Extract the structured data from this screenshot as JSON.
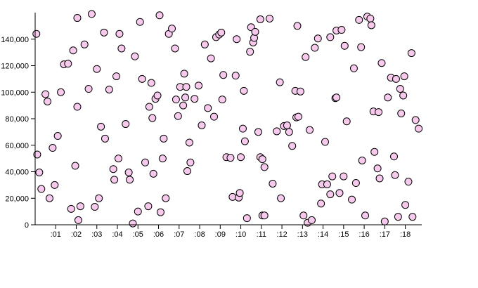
{
  "chart_data": {
    "type": "scatter",
    "title": "",
    "xlabel": "",
    "ylabel": "",
    "grid": false,
    "legend": "none",
    "x_tick_labels": [
      ":01",
      ":02",
      ":03",
      ":04",
      ":05",
      ":06",
      ":07",
      ":08",
      ":09",
      ":10",
      ":11",
      ":12",
      ":13",
      ":14",
      ":15",
      ":16",
      ":17",
      ":18"
    ],
    "y_tick_labels": [
      "0",
      "20,000",
      "40,000",
      "60,000",
      "80,000",
      "100,000",
      "120,000",
      "140,000"
    ],
    "xlim_seconds": [
      0,
      18.8
    ],
    "ylim": [
      0,
      160000
    ],
    "point_fill": "#f7c9ec",
    "point_stroke": "#000000",
    "series": [
      {
        "points": [
          [
            0.06,
            144000
          ],
          [
            0.1,
            53000
          ],
          [
            0.2,
            39500
          ],
          [
            0.3,
            27000
          ],
          [
            0.5,
            98500
          ],
          [
            0.6,
            93000
          ],
          [
            0.7,
            20000
          ],
          [
            0.85,
            58000
          ],
          [
            0.95,
            30000
          ],
          [
            1.1,
            67000
          ],
          [
            1.25,
            100000
          ],
          [
            1.4,
            121000
          ],
          [
            1.6,
            121500
          ],
          [
            1.75,
            12000
          ],
          [
            1.85,
            131500
          ],
          [
            1.95,
            44500
          ],
          [
            2.05,
            89000
          ],
          [
            2.1,
            3500
          ],
          [
            2.05,
            156000
          ],
          [
            2.2,
            14000
          ],
          [
            2.4,
            136000
          ],
          [
            2.6,
            102500
          ],
          [
            2.75,
            159000
          ],
          [
            2.9,
            13500
          ],
          [
            3.0,
            117500
          ],
          [
            3.1,
            20000
          ],
          [
            3.2,
            74000
          ],
          [
            3.35,
            145000
          ],
          [
            3.4,
            65000
          ],
          [
            3.6,
            102000
          ],
          [
            3.8,
            42000
          ],
          [
            3.85,
            34000
          ],
          [
            3.95,
            112000
          ],
          [
            4.05,
            50000
          ],
          [
            4.1,
            144000
          ],
          [
            4.2,
            133000
          ],
          [
            4.4,
            76000
          ],
          [
            4.55,
            39500
          ],
          [
            4.6,
            34000
          ],
          [
            4.75,
            1000
          ],
          [
            4.85,
            127000
          ],
          [
            5.0,
            10000
          ],
          [
            5.1,
            153000
          ],
          [
            5.2,
            110000
          ],
          [
            5.35,
            47000
          ],
          [
            5.5,
            14000
          ],
          [
            5.55,
            89000
          ],
          [
            5.65,
            107000
          ],
          [
            5.7,
            80500
          ],
          [
            5.75,
            38500
          ],
          [
            5.85,
            95000
          ],
          [
            5.95,
            97500
          ],
          [
            6.1,
            9500
          ],
          [
            6.05,
            158000
          ],
          [
            6.2,
            50000
          ],
          [
            6.25,
            65000
          ],
          [
            6.35,
            20000
          ],
          [
            6.5,
            144000
          ],
          [
            6.65,
            148000
          ],
          [
            6.8,
            133000
          ],
          [
            6.85,
            94500
          ],
          [
            6.95,
            82000
          ],
          [
            7.05,
            104000
          ],
          [
            7.2,
            90000
          ],
          [
            7.25,
            114000
          ],
          [
            7.3,
            96000
          ],
          [
            7.35,
            104000
          ],
          [
            7.4,
            40500
          ],
          [
            7.5,
            62000
          ],
          [
            7.55,
            47000
          ],
          [
            7.75,
            95000
          ],
          [
            7.95,
            105000
          ],
          [
            8.1,
            75000
          ],
          [
            8.25,
            136000
          ],
          [
            8.4,
            88000
          ],
          [
            8.55,
            125500
          ],
          [
            8.7,
            81500
          ],
          [
            8.8,
            141500
          ],
          [
            8.95,
            143500
          ],
          [
            9.05,
            145000
          ],
          [
            9.1,
            94500
          ],
          [
            9.15,
            113000
          ],
          [
            9.3,
            51000
          ],
          [
            9.5,
            50500
          ],
          [
            9.6,
            21000
          ],
          [
            9.75,
            112500
          ],
          [
            9.8,
            140000
          ],
          [
            9.9,
            20500
          ],
          [
            9.95,
            24000
          ],
          [
            10.0,
            51000
          ],
          [
            10.1,
            72500
          ],
          [
            10.15,
            101000
          ],
          [
            10.2,
            63000
          ],
          [
            10.3,
            5000
          ],
          [
            10.45,
            130500
          ],
          [
            10.5,
            149000
          ],
          [
            10.6,
            137500
          ],
          [
            10.65,
            141000
          ],
          [
            10.7,
            145500
          ],
          [
            10.85,
            70000
          ],
          [
            10.95,
            155000
          ],
          [
            10.95,
            51000
          ],
          [
            11.05,
            7000
          ],
          [
            11.05,
            49500
          ],
          [
            11.15,
            7000
          ],
          [
            11.15,
            43500
          ],
          [
            11.4,
            155500
          ],
          [
            11.55,
            31000
          ],
          [
            11.75,
            70500
          ],
          [
            11.9,
            107500
          ],
          [
            11.95,
            20000
          ],
          [
            12.1,
            74500
          ],
          [
            12.25,
            75000
          ],
          [
            12.35,
            70000
          ],
          [
            12.5,
            59500
          ],
          [
            12.65,
            101000
          ],
          [
            12.7,
            81000
          ],
          [
            12.75,
            150000
          ],
          [
            12.8,
            81500
          ],
          [
            12.9,
            100500
          ],
          [
            13.05,
            7000
          ],
          [
            13.15,
            126500
          ],
          [
            13.25,
            1500
          ],
          [
            13.35,
            71500
          ],
          [
            13.45,
            3500
          ],
          [
            13.6,
            133500
          ],
          [
            13.75,
            140500
          ],
          [
            13.9,
            16000
          ],
          [
            13.95,
            30500
          ],
          [
            14.1,
            62500
          ],
          [
            14.2,
            30500
          ],
          [
            14.35,
            23000
          ],
          [
            14.35,
            141500
          ],
          [
            14.45,
            36500
          ],
          [
            14.6,
            95500
          ],
          [
            14.65,
            96000
          ],
          [
            14.65,
            146500
          ],
          [
            14.8,
            24000
          ],
          [
            14.9,
            147000
          ],
          [
            15.0,
            36500
          ],
          [
            15.05,
            135000
          ],
          [
            15.15,
            78000
          ],
          [
            15.4,
            19000
          ],
          [
            15.5,
            118000
          ],
          [
            15.6,
            31500
          ],
          [
            15.75,
            154500
          ],
          [
            15.85,
            134000
          ],
          [
            15.9,
            48500
          ],
          [
            16.05,
            7000
          ],
          [
            16.15,
            157000
          ],
          [
            16.3,
            155500
          ],
          [
            16.35,
            150500
          ],
          [
            16.45,
            85500
          ],
          [
            16.5,
            55000
          ],
          [
            16.65,
            42500
          ],
          [
            16.7,
            85000
          ],
          [
            16.75,
            35000
          ],
          [
            16.85,
            122000
          ],
          [
            17.0,
            2500
          ],
          [
            17.15,
            96000
          ],
          [
            17.3,
            111000
          ],
          [
            17.45,
            51500
          ],
          [
            17.5,
            37500
          ],
          [
            17.55,
            110000
          ],
          [
            17.65,
            6000
          ],
          [
            17.75,
            102500
          ],
          [
            17.8,
            84000
          ],
          [
            17.9,
            97500
          ],
          [
            17.95,
            112000
          ],
          [
            18.0,
            15000
          ],
          [
            18.15,
            32500
          ],
          [
            18.3,
            129500
          ],
          [
            18.35,
            6000
          ],
          [
            18.5,
            79000
          ],
          [
            18.65,
            72500
          ]
        ]
      }
    ]
  }
}
